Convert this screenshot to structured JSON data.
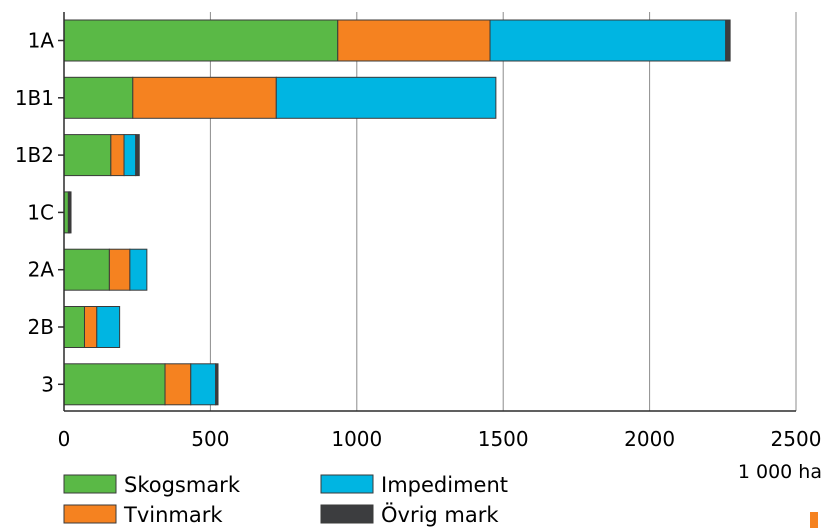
{
  "chart_data": {
    "type": "bar",
    "orientation": "horizontal",
    "stacked": true,
    "categories": [
      "1A",
      "1B1",
      "1B2",
      "1C",
      "2A",
      "2B",
      "3"
    ],
    "series": [
      {
        "name": "Skogsmark",
        "color": "#5ab946",
        "values": [
          935,
          235,
          160,
          15,
          155,
          70,
          345
        ]
      },
      {
        "name": "Tvinmark",
        "color": "#f58220",
        "values": [
          520,
          490,
          45,
          3,
          70,
          42,
          88
        ]
      },
      {
        "name": "Impediment",
        "color": "#00b5e2",
        "values": [
          805,
          750,
          40,
          2,
          58,
          78,
          85
        ]
      },
      {
        "name": "Övrig mark",
        "color": "#3c3d3f",
        "values": [
          15,
          0,
          12,
          4,
          0,
          0,
          8
        ]
      }
    ],
    "x_ticks": [
      "0",
      "500",
      "1000",
      "1500",
      "2000",
      "2500"
    ],
    "xlim": [
      0,
      2500
    ],
    "xlabel": "1 000 ha",
    "grid": "vertical",
    "legend_position": "bottom"
  },
  "decor": {
    "accent_color": "#f58220"
  }
}
